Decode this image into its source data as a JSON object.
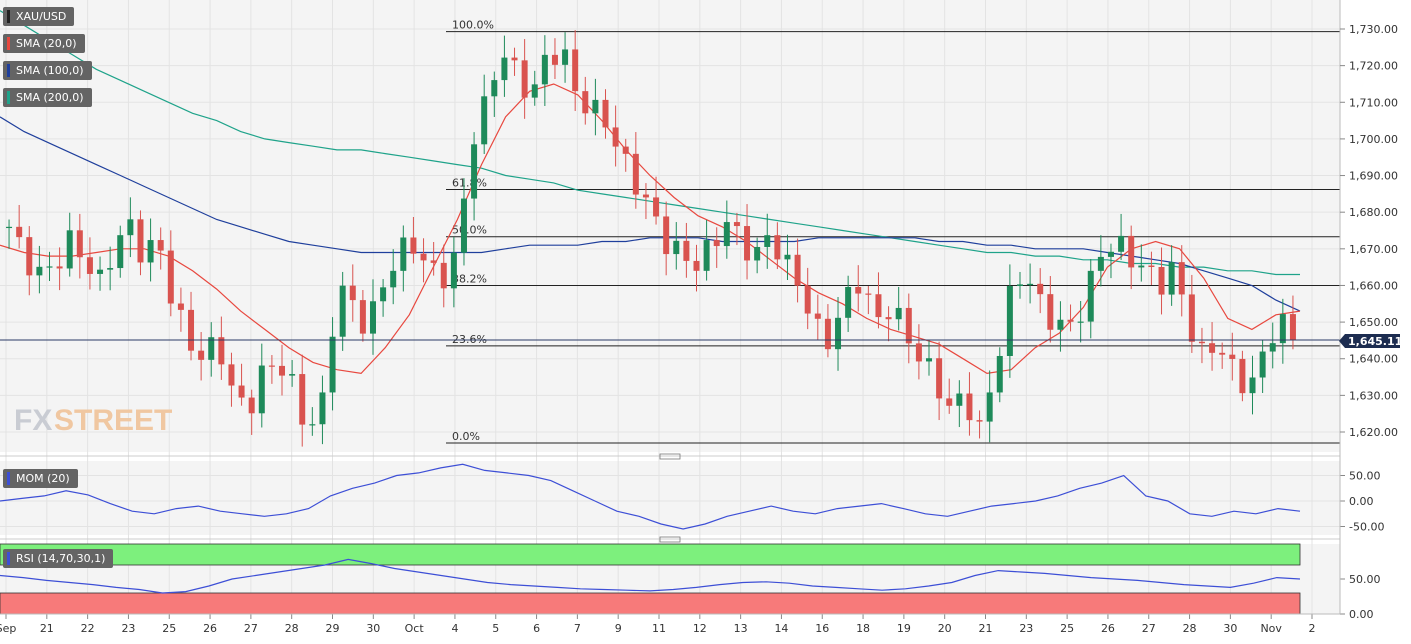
{
  "legend": {
    "main": {
      "label": "XAU/USD",
      "color": "#222222"
    },
    "sma20": {
      "label": "SMA (20,0)",
      "color": "#e8483f"
    },
    "sma100": {
      "label": "SMA (100,0)",
      "color": "#1f3f9c"
    },
    "sma200": {
      "label": "SMA (200,0)",
      "color": "#1fa38a"
    },
    "mom": {
      "label": "MOM (20)",
      "color": "#3d4fd6"
    },
    "rsi": {
      "label": "RSI (14,70,30,1)",
      "color": "#3d4fd6"
    }
  },
  "watermark": {
    "fx": "FX",
    "street": "STREET"
  },
  "colors": {
    "up": "#1e8a5a",
    "down": "#d9534f",
    "overbought": "#7df07d",
    "oversold": "#f77a7a"
  },
  "price_badge": "1,645.11",
  "price_axis": [
    "1,730.00",
    "1,720.00",
    "1,710.00",
    "1,700.00",
    "1,690.00",
    "1,680.00",
    "1,670.00",
    "1,660.00",
    "1,650.00",
    "1,640.00",
    "1,630.00",
    "1,620.00"
  ],
  "mom_axis": [
    "50.00",
    "0.00",
    "-50.00"
  ],
  "rsi_axis": [
    "50.00",
    "0.00"
  ],
  "date_axis": [
    "Sep",
    "21",
    "22",
    "23",
    "25",
    "26",
    "27",
    "28",
    "29",
    "30",
    "Oct",
    "4",
    "5",
    "6",
    "7",
    "9",
    "11",
    "12",
    "13",
    "14",
    "16",
    "18",
    "19",
    "20",
    "21",
    "23",
    "25",
    "26",
    "27",
    "28",
    "30",
    "Nov",
    "2"
  ],
  "fib_labels": [
    "100.0%",
    "61.8%",
    "50.0%",
    "38.2%",
    "23.6%",
    "0.0%"
  ],
  "chart_data": {
    "type": "candlestick",
    "symbol": "XAU/USD",
    "ylim": [
      1615,
      1735
    ],
    "fibonacci": [
      {
        "label": "100.0%",
        "price": 1729.3
      },
      {
        "label": "61.8%",
        "price": 1686.2
      },
      {
        "label": "50.0%",
        "price": 1673.3
      },
      {
        "label": "38.2%",
        "price": 1660.0
      },
      {
        "label": "23.6%",
        "price": 1643.5
      },
      {
        "label": "0.0%",
        "price": 1617.0
      }
    ],
    "last_price": 1645.11,
    "sma20": [
      1671,
      1669,
      1668,
      1668,
      1669,
      1670,
      1670,
      1668,
      1664,
      1659,
      1653,
      1648,
      1643,
      1639,
      1637,
      1636,
      1643,
      1652,
      1665,
      1678,
      1693,
      1706,
      1713,
      1715,
      1712,
      1705,
      1697,
      1690,
      1684,
      1679,
      1676,
      1672,
      1667,
      1662,
      1658,
      1655,
      1651,
      1648,
      1646,
      1644,
      1640,
      1636,
      1637,
      1643,
      1647,
      1654,
      1665,
      1670,
      1672,
      1670,
      1662,
      1651,
      1648,
      1652,
      1653
    ],
    "sma100": [
      1706,
      1702,
      1699,
      1696,
      1693,
      1690,
      1687,
      1684,
      1681,
      1678,
      1676,
      1674,
      1672,
      1671,
      1670,
      1669,
      1669,
      1669,
      1669,
      1669,
      1669,
      1670,
      1671,
      1671,
      1671,
      1672,
      1672,
      1673,
      1673,
      1673,
      1672,
      1672,
      1672,
      1672,
      1673,
      1673,
      1673,
      1673,
      1673,
      1672,
      1672,
      1671,
      1671,
      1670,
      1670,
      1670,
      1669,
      1668,
      1667,
      1666,
      1664,
      1662,
      1660,
      1656,
      1653
    ],
    "sma200": [
      1735,
      1731,
      1727,
      1723,
      1719,
      1716,
      1713,
      1710,
      1707,
      1705,
      1702,
      1700,
      1699,
      1698,
      1697,
      1697,
      1696,
      1695,
      1694,
      1693,
      1692,
      1690,
      1689,
      1688,
      1686,
      1685,
      1684,
      1683,
      1682,
      1681,
      1680,
      1679,
      1678,
      1677,
      1676,
      1675,
      1674,
      1673,
      1672,
      1671,
      1670,
      1669,
      1669,
      1668,
      1668,
      1667,
      1667,
      1666,
      1666,
      1665,
      1665,
      1664,
      1664,
      1663,
      1663
    ],
    "momentum": [
      0,
      5,
      10,
      20,
      12,
      -5,
      -20,
      -25,
      -15,
      -10,
      -20,
      -25,
      -30,
      -25,
      -15,
      10,
      25,
      35,
      50,
      55,
      65,
      72,
      60,
      55,
      50,
      40,
      20,
      0,
      -20,
      -30,
      -45,
      -55,
      -45,
      -30,
      -20,
      -10,
      -20,
      -25,
      -15,
      -10,
      -5,
      -15,
      -25,
      -30,
      -20,
      -10,
      -5,
      0,
      10,
      25,
      35,
      50,
      10,
      0,
      -25,
      -30,
      -20,
      -25,
      -15,
      -20
    ],
    "rsi": [
      55,
      52,
      48,
      45,
      42,
      38,
      35,
      30,
      32,
      40,
      50,
      55,
      60,
      65,
      70,
      78,
      72,
      65,
      60,
      55,
      50,
      45,
      42,
      40,
      38,
      36,
      35,
      34,
      33,
      35,
      38,
      42,
      45,
      46,
      44,
      40,
      38,
      36,
      34,
      36,
      40,
      45,
      55,
      62,
      60,
      58,
      55,
      52,
      50,
      48,
      45,
      42,
      40,
      38,
      44,
      52,
      50
    ]
  }
}
